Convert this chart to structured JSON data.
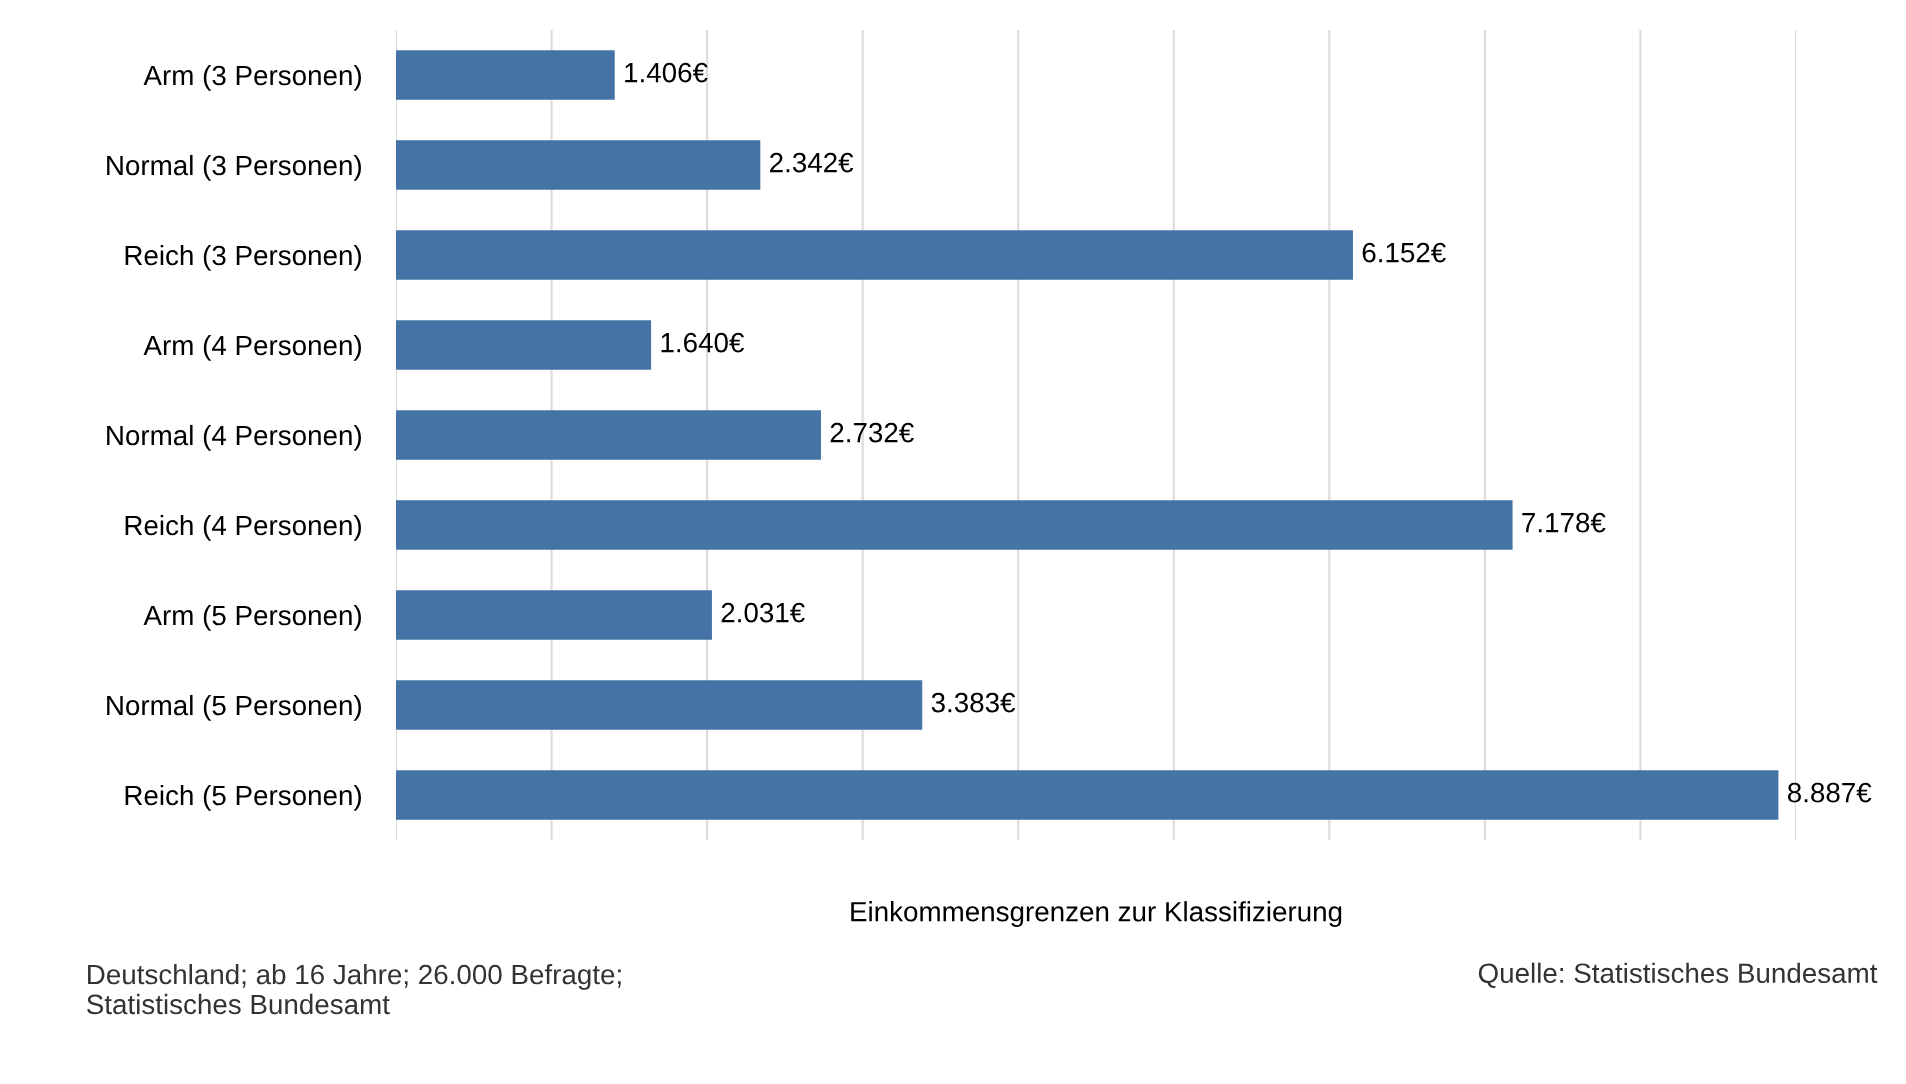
{
  "chart_data": {
    "type": "bar",
    "orientation": "horizontal",
    "categories": [
      "Arm (3 Personen)",
      "Normal (3 Personen)",
      "Reich (3 Personen)",
      "Arm (4 Personen)",
      "Normal (4 Personen)",
      "Reich (4 Personen)",
      "Arm (5 Personen)",
      "Normal (5 Personen)",
      "Reich (5 Personen)"
    ],
    "values": [
      1406,
      2342,
      6152,
      1640,
      2732,
      7178,
      2031,
      3383,
      8887
    ],
    "value_labels": [
      "1.406€",
      "2.342€",
      "6.152€",
      "1.640€",
      "2.732€",
      "7.178€",
      "2.031€",
      "3.383€",
      "8.887€"
    ],
    "color": "#4573a5",
    "xlabel": "Einkommensgrenzen zur Klassifizierung",
    "xlim": [
      0,
      9000
    ],
    "xticks": [
      {
        "value": 0,
        "label": null
      },
      {
        "value": 1000,
        "label": null
      },
      {
        "value": 2000,
        "label": null
      },
      {
        "value": 3000,
        "label": null
      },
      {
        "value": 4000,
        "label": null
      },
      {
        "value": 5000,
        "label": null
      },
      {
        "value": 6000,
        "label": null
      },
      {
        "value": 7000,
        "label": null
      },
      {
        "value": 8000,
        "label": null
      },
      {
        "value": 9000,
        "label": null
      }
    ],
    "grid": "x",
    "tick_labels": "y",
    "legend": false,
    "annotations": [
      "Deutschland; ab 16 Jahre; 26.000 Befragte;\nStatistisches Bundesamt",
      "Quelle: Statistisches Bundesamt"
    ]
  }
}
